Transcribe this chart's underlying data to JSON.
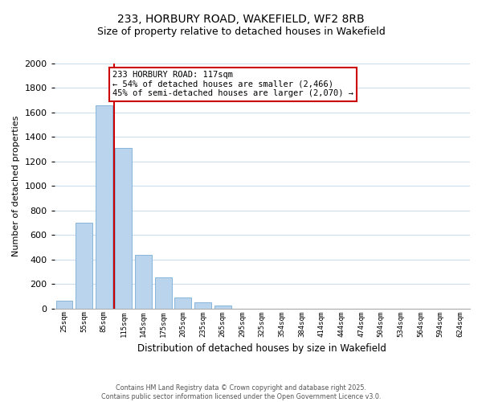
{
  "title_line1": "233, HORBURY ROAD, WAKEFIELD, WF2 8RB",
  "title_line2": "Size of property relative to detached houses in Wakefield",
  "xlabel": "Distribution of detached houses by size in Wakefield",
  "ylabel": "Number of detached properties",
  "bar_color": "#bad4ed",
  "bar_edge_color": "#7aadd4",
  "background_color": "#ffffff",
  "grid_color": "#ccddf0",
  "categories": [
    "25sqm",
    "55sqm",
    "85sqm",
    "115sqm",
    "145sqm",
    "175sqm",
    "205sqm",
    "235sqm",
    "265sqm",
    "295sqm",
    "325sqm",
    "354sqm",
    "384sqm",
    "414sqm",
    "444sqm",
    "474sqm",
    "504sqm",
    "534sqm",
    "564sqm",
    "594sqm",
    "624sqm"
  ],
  "values": [
    65,
    700,
    1660,
    1310,
    440,
    255,
    90,
    50,
    25,
    0,
    0,
    0,
    0,
    0,
    0,
    0,
    0,
    0,
    0,
    0,
    0
  ],
  "ylim": [
    0,
    2000
  ],
  "yticks": [
    0,
    200,
    400,
    600,
    800,
    1000,
    1200,
    1400,
    1600,
    1800,
    2000
  ],
  "vline_color": "#cc0000",
  "annotation_title": "233 HORBURY ROAD: 117sqm",
  "annotation_line2": "← 54% of detached houses are smaller (2,466)",
  "annotation_line3": "45% of semi-detached houses are larger (2,070) →",
  "footer_line1": "Contains HM Land Registry data © Crown copyright and database right 2025.",
  "footer_line2": "Contains public sector information licensed under the Open Government Licence v3.0."
}
